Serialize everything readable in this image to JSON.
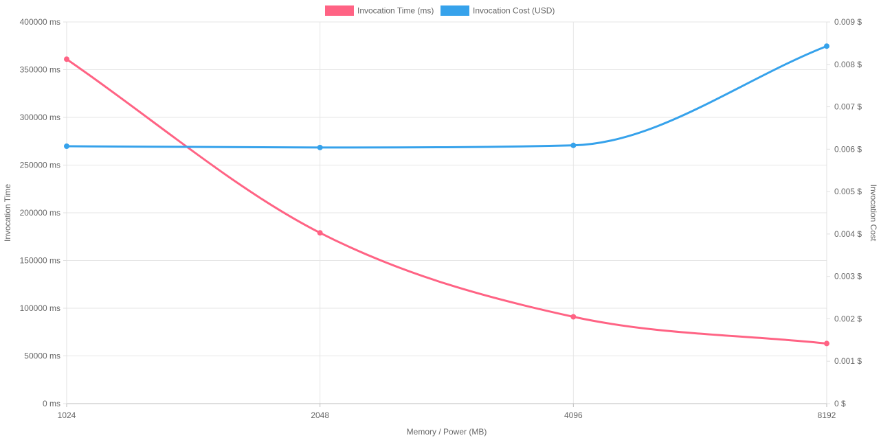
{
  "chart_data": {
    "type": "line",
    "x": [
      "1024",
      "2048",
      "4096",
      "8192"
    ],
    "xlabel": "Memory / Power (MB)",
    "series": [
      {
        "name": "Invocation Time (ms)",
        "axis": "left",
        "color": "#ff6384",
        "values": [
          361000,
          179000,
          91000,
          63000
        ]
      },
      {
        "name": "Invocation Cost (USD)",
        "axis": "right",
        "color": "#36a2eb",
        "values": [
          0.00607,
          0.00604,
          0.00609,
          0.00843
        ]
      }
    ],
    "y_left": {
      "label": "Invocation Time",
      "min": 0,
      "max": 400000,
      "ticks": [
        "400000 ms",
        "350000 ms",
        "300000 ms",
        "250000 ms",
        "200000 ms",
        "150000 ms",
        "100000 ms",
        "50000 ms",
        "0 ms"
      ]
    },
    "y_right": {
      "label": "Invocation Cost",
      "min": 0,
      "max": 0.009,
      "ticks": [
        "0.009 $",
        "0.008 $",
        "0.007 $",
        "0.006 $",
        "0.005 $",
        "0.004 $",
        "0.003 $",
        "0.002 $",
        "0.001 $",
        "0 $"
      ]
    },
    "grid": true,
    "legend_position": "top"
  }
}
